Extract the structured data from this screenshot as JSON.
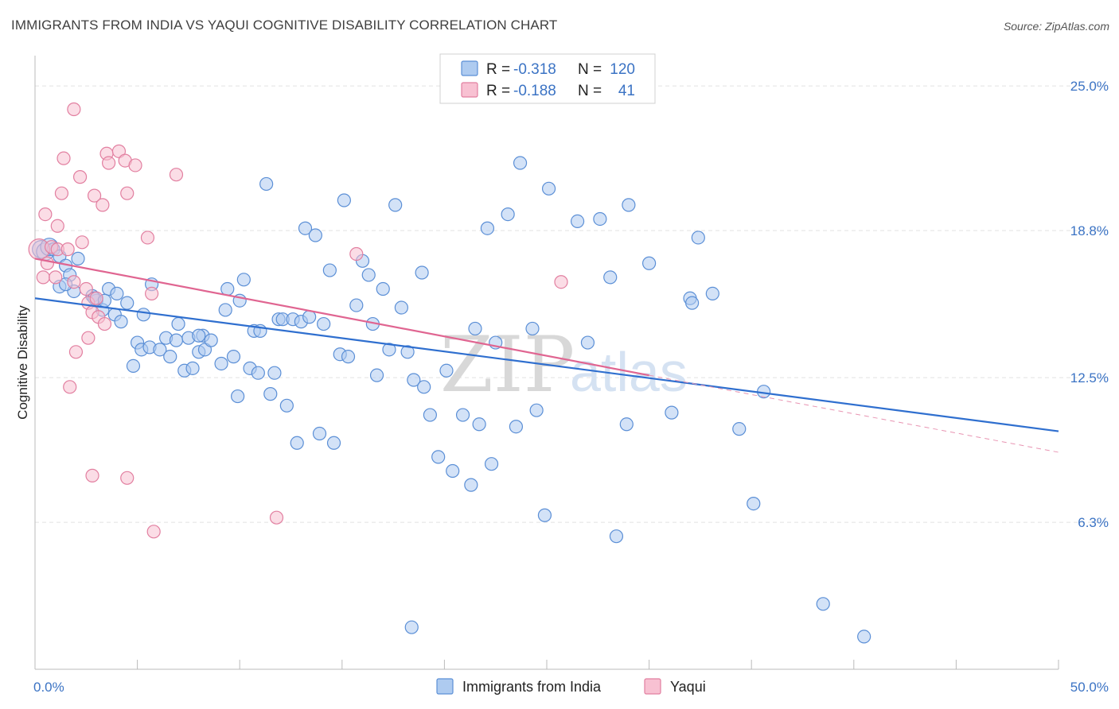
{
  "title": "IMMIGRANTS FROM INDIA VS YAQUI COGNITIVE DISABILITY CORRELATION CHART",
  "source": "Source: ZipAtlas.com",
  "watermark": {
    "zip": "ZIP",
    "atlas": "atlas"
  },
  "legend": {
    "r_label": "R =",
    "n_label": "N =",
    "rows": [
      {
        "r": "-0.318",
        "n": "120",
        "fill": "#aecbf0",
        "stroke": "#5b8fd6"
      },
      {
        "r": "-0.188",
        "n": "41",
        "fill": "#f8c1d2",
        "stroke": "#e27fa0"
      }
    ]
  },
  "chart_data": {
    "type": "scatter",
    "title": "IMMIGRANTS FROM INDIA VS YAQUI COGNITIVE DISABILITY CORRELATION CHART",
    "xlabel": "",
    "ylabel": "Cognitive Disability",
    "xlim": [
      0,
      50
    ],
    "ylim": [
      0,
      26.3
    ],
    "x_tick_labels": [
      "0.0%",
      "50.0%"
    ],
    "y_ticks": [
      {
        "value": 6.3,
        "label": "6.3%"
      },
      {
        "value": 12.5,
        "label": "12.5%"
      },
      {
        "value": 18.8,
        "label": "18.8%"
      },
      {
        "value": 25.0,
        "label": "25.0%"
      }
    ],
    "grid": true,
    "legend_position": "bottom-center",
    "series": [
      {
        "name": "Immigrants from India",
        "color": "#5b8fd6",
        "fill": "#aecbf0",
        "trend": {
          "x": [
            0,
            50
          ],
          "y": [
            15.9,
            10.2
          ]
        },
        "points": [
          [
            0.3,
            18.0
          ],
          [
            0.5,
            17.9
          ],
          [
            0.7,
            18.1
          ],
          [
            0.9,
            18.0
          ],
          [
            1.2,
            17.7
          ],
          [
            1.5,
            17.3
          ],
          [
            1.7,
            16.9
          ],
          [
            1.2,
            16.4
          ],
          [
            1.9,
            16.2
          ],
          [
            2.8,
            16.0
          ],
          [
            3.0,
            15.8
          ],
          [
            3.6,
            16.3
          ],
          [
            3.3,
            15.4
          ],
          [
            3.9,
            15.2
          ],
          [
            2.9,
            15.9
          ],
          [
            4.2,
            14.9
          ],
          [
            4.5,
            15.7
          ],
          [
            5.3,
            15.2
          ],
          [
            4.8,
            13.0
          ],
          [
            5.0,
            14.0
          ],
          [
            5.2,
            13.7
          ],
          [
            5.6,
            13.8
          ],
          [
            6.1,
            13.7
          ],
          [
            6.4,
            14.2
          ],
          [
            6.6,
            13.4
          ],
          [
            5.7,
            16.5
          ],
          [
            6.9,
            14.1
          ],
          [
            7.0,
            14.8
          ],
          [
            7.3,
            12.8
          ],
          [
            7.5,
            14.2
          ],
          [
            7.7,
            12.9
          ],
          [
            8.0,
            13.6
          ],
          [
            8.2,
            14.3
          ],
          [
            8.3,
            13.7
          ],
          [
            8.6,
            14.1
          ],
          [
            9.1,
            13.1
          ],
          [
            9.3,
            15.4
          ],
          [
            9.4,
            16.3
          ],
          [
            9.7,
            13.4
          ],
          [
            10.0,
            15.8
          ],
          [
            9.9,
            11.7
          ],
          [
            10.2,
            16.7
          ],
          [
            10.5,
            12.9
          ],
          [
            10.7,
            14.5
          ],
          [
            10.9,
            12.7
          ],
          [
            11.0,
            14.5
          ],
          [
            11.3,
            20.8
          ],
          [
            11.5,
            11.8
          ],
          [
            11.7,
            12.7
          ],
          [
            11.9,
            15.0
          ],
          [
            12.1,
            15.0
          ],
          [
            12.3,
            11.3
          ],
          [
            12.6,
            15.0
          ],
          [
            12.8,
            9.7
          ],
          [
            13.0,
            14.9
          ],
          [
            13.2,
            18.9
          ],
          [
            13.4,
            15.1
          ],
          [
            13.7,
            18.6
          ],
          [
            13.9,
            10.1
          ],
          [
            14.1,
            14.8
          ],
          [
            14.4,
            17.1
          ],
          [
            14.6,
            9.7
          ],
          [
            14.9,
            13.5
          ],
          [
            15.1,
            20.1
          ],
          [
            15.3,
            13.4
          ],
          [
            15.7,
            15.6
          ],
          [
            16.0,
            17.5
          ],
          [
            16.3,
            16.9
          ],
          [
            16.5,
            14.8
          ],
          [
            16.7,
            12.6
          ],
          [
            17.0,
            16.3
          ],
          [
            17.3,
            13.7
          ],
          [
            17.6,
            19.9
          ],
          [
            17.9,
            15.5
          ],
          [
            18.2,
            13.6
          ],
          [
            18.5,
            12.4
          ],
          [
            18.9,
            17.0
          ],
          [
            19.0,
            12.1
          ],
          [
            19.3,
            10.9
          ],
          [
            19.7,
            9.1
          ],
          [
            20.1,
            12.8
          ],
          [
            20.4,
            8.5
          ],
          [
            20.9,
            10.9
          ],
          [
            21.3,
            7.9
          ],
          [
            21.5,
            14.6
          ],
          [
            21.7,
            10.5
          ],
          [
            22.1,
            18.9
          ],
          [
            22.3,
            8.8
          ],
          [
            22.5,
            14.0
          ],
          [
            23.1,
            19.5
          ],
          [
            23.5,
            10.4
          ],
          [
            23.7,
            21.7
          ],
          [
            24.3,
            14.6
          ],
          [
            24.5,
            11.1
          ],
          [
            24.9,
            6.6
          ],
          [
            25.1,
            20.6
          ],
          [
            26.5,
            19.2
          ],
          [
            27.0,
            14.0
          ],
          [
            27.6,
            19.3
          ],
          [
            28.1,
            16.8
          ],
          [
            28.4,
            5.7
          ],
          [
            28.9,
            10.5
          ],
          [
            29.0,
            19.9
          ],
          [
            30.0,
            17.4
          ],
          [
            31.1,
            11.0
          ],
          [
            32.0,
            15.9
          ],
          [
            32.1,
            15.7
          ],
          [
            32.4,
            18.5
          ],
          [
            33.1,
            16.1
          ],
          [
            34.4,
            10.3
          ],
          [
            35.1,
            7.1
          ],
          [
            35.6,
            11.9
          ],
          [
            38.5,
            2.8
          ],
          [
            40.5,
            1.4
          ],
          [
            18.4,
            1.8
          ],
          [
            4.0,
            16.1
          ],
          [
            1.5,
            16.5
          ],
          [
            2.1,
            17.6
          ],
          [
            3.4,
            15.8
          ],
          [
            8.0,
            14.3
          ]
        ]
      },
      {
        "name": "Yaqui",
        "color": "#e27fa0",
        "fill": "#f8c1d2",
        "trend": {
          "x": [
            0,
            30
          ],
          "y": [
            17.6,
            12.6
          ]
        },
        "trend_extension": {
          "x": [
            30,
            50
          ],
          "y": [
            12.6,
            9.3
          ]
        },
        "points": [
          [
            0.2,
            18.0
          ],
          [
            0.4,
            16.8
          ],
          [
            0.8,
            18.1
          ],
          [
            1.1,
            18.0
          ],
          [
            0.5,
            19.5
          ],
          [
            1.0,
            16.8
          ],
          [
            1.1,
            19.0
          ],
          [
            1.3,
            20.4
          ],
          [
            1.4,
            21.9
          ],
          [
            1.6,
            18.0
          ],
          [
            1.9,
            16.6
          ],
          [
            1.9,
            24.0
          ],
          [
            2.0,
            13.6
          ],
          [
            2.2,
            21.1
          ],
          [
            2.3,
            18.3
          ],
          [
            2.5,
            16.3
          ],
          [
            2.6,
            15.7
          ],
          [
            2.8,
            15.3
          ],
          [
            2.9,
            20.3
          ],
          [
            3.1,
            15.1
          ],
          [
            3.3,
            19.9
          ],
          [
            3.5,
            22.1
          ],
          [
            3.6,
            21.7
          ],
          [
            4.1,
            22.2
          ],
          [
            4.4,
            21.8
          ],
          [
            4.5,
            20.4
          ],
          [
            4.9,
            21.6
          ],
          [
            5.5,
            18.5
          ],
          [
            5.7,
            16.1
          ],
          [
            5.8,
            5.9
          ],
          [
            6.9,
            21.2
          ],
          [
            1.7,
            12.1
          ],
          [
            2.8,
            8.3
          ],
          [
            4.5,
            8.2
          ],
          [
            11.8,
            6.5
          ],
          [
            15.7,
            17.8
          ],
          [
            25.7,
            16.6
          ],
          [
            3.4,
            14.8
          ],
          [
            3.0,
            15.9
          ],
          [
            2.6,
            14.2
          ],
          [
            0.6,
            17.4
          ]
        ]
      }
    ]
  }
}
